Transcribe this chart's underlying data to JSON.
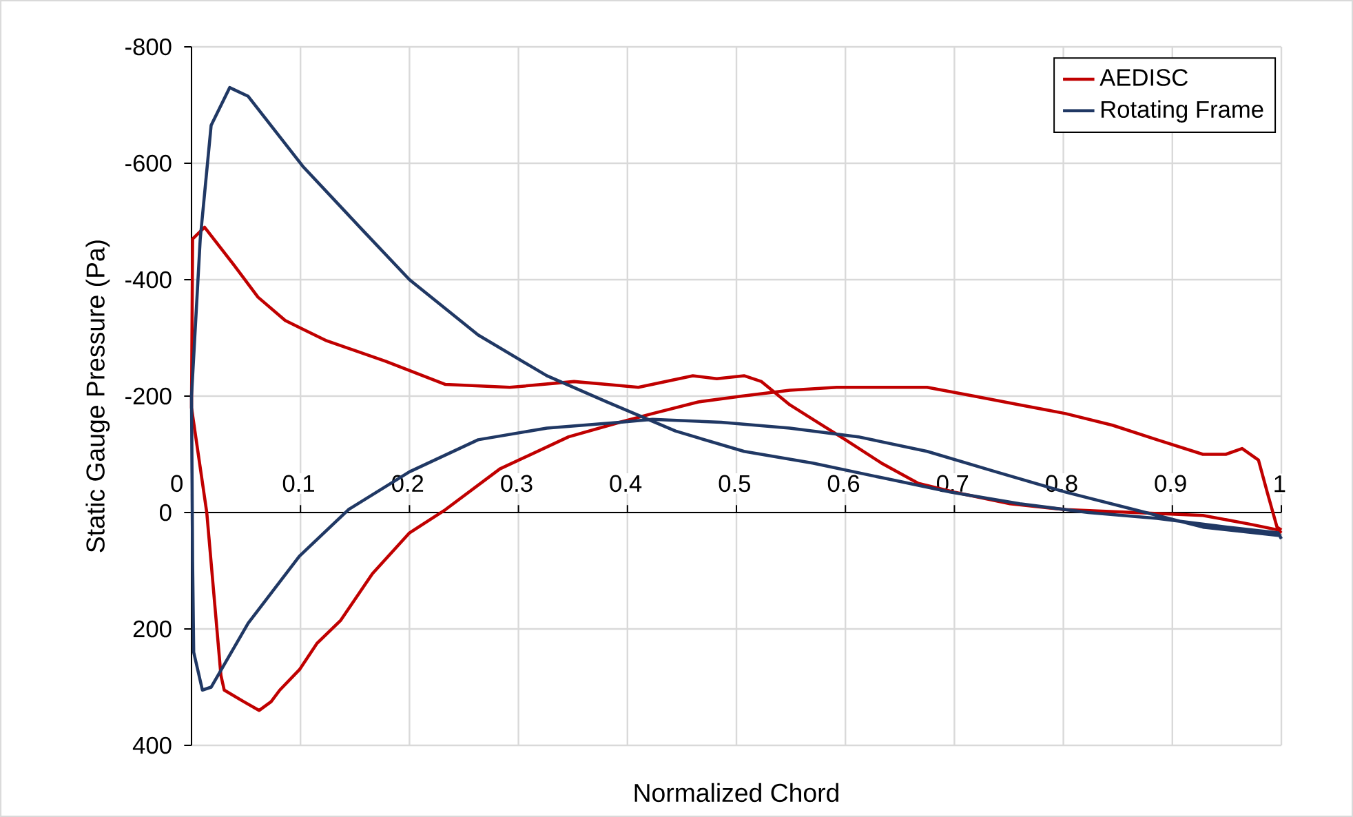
{
  "chart_data": {
    "type": "line",
    "xlabel": "Normalized Chord",
    "ylabel": "Static Gauge Pressure (Pa)",
    "xlim": [
      0,
      1
    ],
    "ylim": [
      400,
      -800
    ],
    "xticks": [
      0,
      0.1,
      0.2,
      0.3,
      0.4,
      0.5,
      0.6,
      0.7,
      0.8,
      0.9,
      1
    ],
    "yticks": [
      -800,
      -600,
      -400,
      -200,
      0,
      200,
      400
    ],
    "grid": true,
    "legend": "top right",
    "marker": "none",
    "line_style": "solid",
    "series": [
      {
        "name": "AEDISC",
        "color": "#c00000",
        "x": [
          1,
          0.997,
          0.971,
          0.928,
          0.865,
          0.802,
          0.751,
          0.7,
          0.667,
          0.633,
          0.6,
          0.566,
          0.549,
          0.523,
          0.507,
          0.482,
          0.46,
          0.41,
          0.381,
          0.351,
          0.292,
          0.233,
          0.178,
          0.124,
          0.102,
          0.086,
          0.061,
          0.039,
          0.012,
          0.001,
          0,
          0.014,
          0.027,
          0.03,
          0.048,
          0.062,
          0.073,
          0.081,
          0.099,
          0.115,
          0.137,
          0.166,
          0.2,
          0.233,
          0.283,
          0.346,
          0.393,
          0.423,
          0.465,
          0.505,
          0.549,
          0.592,
          0.635,
          0.675,
          0.718,
          0.76,
          0.802,
          0.845,
          0.886,
          0.928,
          0.949,
          0.964,
          0.979,
          0.987,
          0.996,
          1
        ],
        "values": [
          35,
          30,
          20,
          5,
          0,
          -5,
          -15,
          -35,
          -50,
          -85,
          -125,
          -165,
          -185,
          -225,
          -235,
          -230,
          -235,
          -215,
          -220,
          -225,
          -215,
          -220,
          -260,
          -295,
          -315,
          -330,
          -370,
          -425,
          -490,
          -470,
          -180,
          0,
          280,
          305,
          325,
          340,
          325,
          305,
          270,
          225,
          185,
          105,
          35,
          -5,
          -75,
          -130,
          -155,
          -170,
          -190,
          -200,
          -210,
          -215,
          -215,
          -215,
          -200,
          -185,
          -170,
          -150,
          -125,
          -100,
          -100,
          -110,
          -90,
          -35,
          25,
          30
        ]
      },
      {
        "name": "Rotating Frame",
        "color": "#203864",
        "x": [
          1,
          0.997,
          0.949,
          0.886,
          0.823,
          0.76,
          0.697,
          0.633,
          0.57,
          0.507,
          0.444,
          0.381,
          0.326,
          0.263,
          0.2,
          0.157,
          0.102,
          0.052,
          0.035,
          0.018,
          0.008,
          0,
          0.001,
          0.002,
          0.01,
          0.018,
          0.052,
          0.099,
          0.144,
          0.2,
          0.263,
          0.326,
          0.393,
          0.423,
          0.486,
          0.549,
          0.612,
          0.675,
          0.738,
          0.802,
          0.865,
          0.928,
          1
        ],
        "values": [
          45,
          35,
          25,
          10,
          0,
          -15,
          -35,
          -60,
          -85,
          -105,
          -140,
          -190,
          -235,
          -305,
          -400,
          -485,
          -595,
          -715,
          -730,
          -665,
          -470,
          -200,
          85,
          240,
          305,
          300,
          190,
          75,
          -5,
          -70,
          -125,
          -145,
          -155,
          -160,
          -155,
          -145,
          -130,
          -105,
          -70,
          -35,
          -5,
          25,
          40
        ]
      }
    ]
  }
}
